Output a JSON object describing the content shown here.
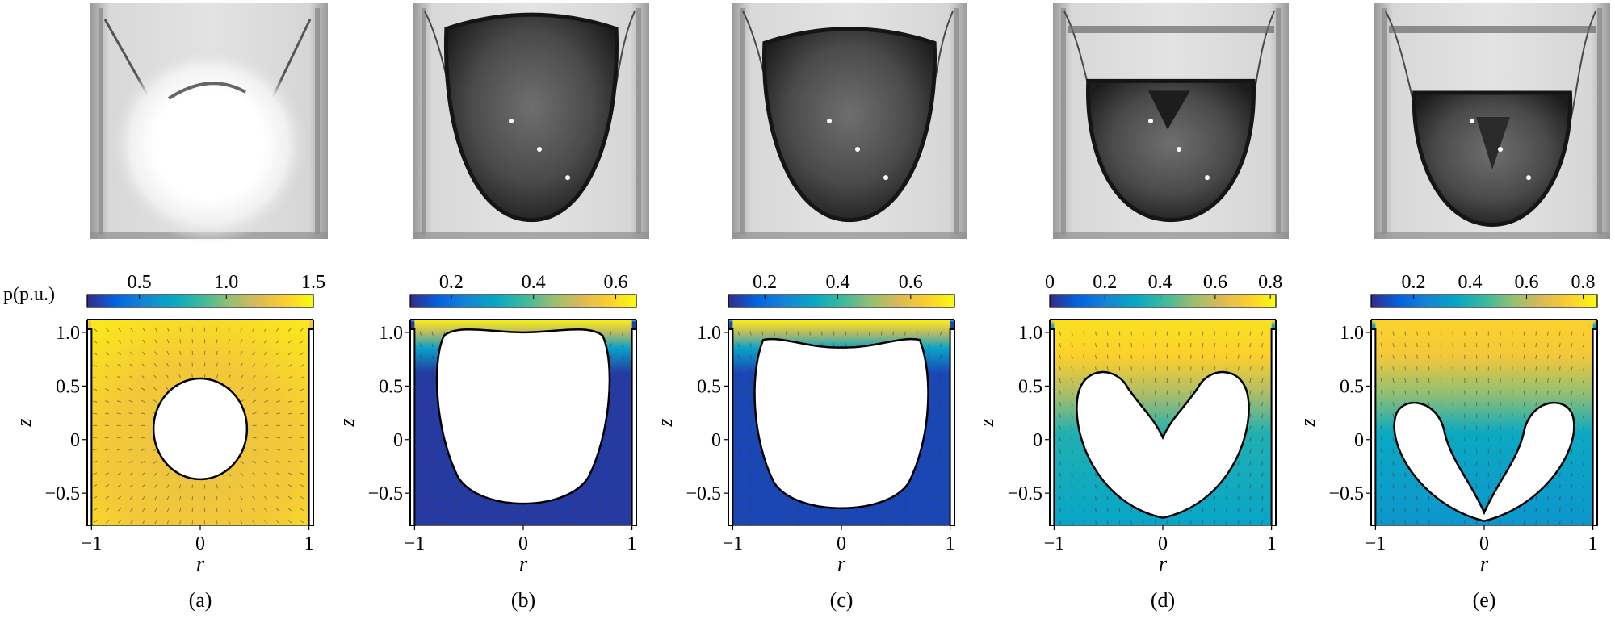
{
  "figure": {
    "pressure_label": "p(p.u.)",
    "axis_labels": {
      "x": "r",
      "y": "z"
    },
    "panels": [
      {
        "caption": "(a)",
        "colorbar_ticks": [
          "0.5",
          "1.0",
          "1.5"
        ],
        "colorbar_range": [
          0.2,
          1.5
        ],
        "background_level": 1.35,
        "shape": "sphere",
        "bubble_shape": "sphere"
      },
      {
        "caption": "(b)",
        "colorbar_ticks": [
          "0.2",
          "0.4",
          "0.6"
        ],
        "colorbar_range": [
          0.1,
          0.65
        ],
        "background_level": 0.12,
        "shape": "top-pressurized",
        "bubble_shape": "expanded-dome"
      },
      {
        "caption": "(c)",
        "colorbar_ticks": [
          "0.2",
          "0.4",
          "0.6"
        ],
        "colorbar_range": [
          0.1,
          0.72
        ],
        "background_level": 0.14,
        "shape": "top-pressurized",
        "bubble_shape": "flattened-dome"
      },
      {
        "caption": "(d)",
        "colorbar_ticks": [
          "0",
          "0.2",
          "0.4",
          "0.6",
          "0.8"
        ],
        "colorbar_range": [
          0,
          0.82
        ],
        "background_level": 0.3,
        "shape": "gradient",
        "bubble_shape": "jet-heart"
      },
      {
        "caption": "(e)",
        "colorbar_ticks": [
          "0.2",
          "0.4",
          "0.6",
          "0.8"
        ],
        "colorbar_range": [
          0.05,
          0.85
        ],
        "background_level": 0.3,
        "shape": "gradient",
        "bubble_shape": "jet-toroidal"
      }
    ],
    "x_ticks": [
      "−1",
      "0",
      "1"
    ],
    "y_ticks": [
      "1.0",
      "0.5",
      "0",
      "−0.5"
    ],
    "colormap": [
      "#352a87",
      "#0363e1",
      "#1485d4",
      "#06a7c6",
      "#38b99e",
      "#92bf73",
      "#d9ba56",
      "#fcce2e",
      "#f9fb0e"
    ],
    "photo_descriptions": [
      "bright-flash-bubble",
      "dark-expanded-bubble",
      "dark-bubble",
      "collapsing-bubble-jet",
      "toroidal-bubble"
    ]
  }
}
